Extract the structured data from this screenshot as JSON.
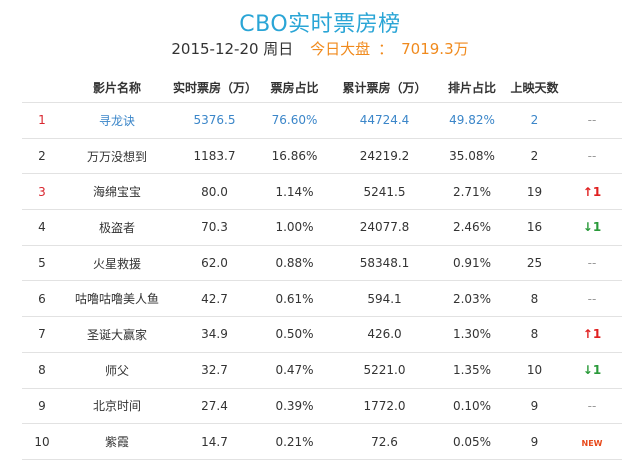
{
  "header": {
    "title": "CBO实时票房榜",
    "date": "2015-12-20 周日",
    "today_label": "今日大盘",
    "today_sep": "：",
    "today_value": "7019.3万"
  },
  "table": {
    "columns": [
      "影片名称",
      "实时票房（万）",
      "票房占比",
      "累计票房（万）",
      "排片占比",
      "上映天数"
    ],
    "rows": [
      {
        "rank": "1",
        "name": "寻龙诀",
        "realtime": "5376.5",
        "share": "76.60%",
        "cumulative": "44724.4",
        "screen_share": "49.82%",
        "days": "2",
        "trend": "--",
        "trend_type": "none"
      },
      {
        "rank": "2",
        "name": "万万没想到",
        "realtime": "1183.7",
        "share": "16.86%",
        "cumulative": "24219.2",
        "screen_share": "35.08%",
        "days": "2",
        "trend": "--",
        "trend_type": "none"
      },
      {
        "rank": "3",
        "name": "海绵宝宝",
        "realtime": "80.0",
        "share": "1.14%",
        "cumulative": "5241.5",
        "screen_share": "2.71%",
        "days": "19",
        "trend": "↑1",
        "trend_type": "up"
      },
      {
        "rank": "4",
        "name": "极盗者",
        "realtime": "70.3",
        "share": "1.00%",
        "cumulative": "24077.8",
        "screen_share": "2.46%",
        "days": "16",
        "trend": "↓1",
        "trend_type": "down"
      },
      {
        "rank": "5",
        "name": "火星救援",
        "realtime": "62.0",
        "share": "0.88%",
        "cumulative": "58348.1",
        "screen_share": "0.91%",
        "days": "25",
        "trend": "--",
        "trend_type": "none"
      },
      {
        "rank": "6",
        "name": "咕噜咕噜美人鱼",
        "realtime": "42.7",
        "share": "0.61%",
        "cumulative": "594.1",
        "screen_share": "2.03%",
        "days": "8",
        "trend": "--",
        "trend_type": "none"
      },
      {
        "rank": "7",
        "name": "圣诞大赢家",
        "realtime": "34.9",
        "share": "0.50%",
        "cumulative": "426.0",
        "screen_share": "1.30%",
        "days": "8",
        "trend": "↑1",
        "trend_type": "up"
      },
      {
        "rank": "8",
        "name": "师父",
        "realtime": "32.7",
        "share": "0.47%",
        "cumulative": "5221.0",
        "screen_share": "1.35%",
        "days": "10",
        "trend": "↓1",
        "trend_type": "down"
      },
      {
        "rank": "9",
        "name": "北京时间",
        "realtime": "27.4",
        "share": "0.39%",
        "cumulative": "1772.0",
        "screen_share": "0.10%",
        "days": "9",
        "trend": "--",
        "trend_type": "none"
      },
      {
        "rank": "10",
        "name": "紫霞",
        "realtime": "14.7",
        "share": "0.21%",
        "cumulative": "72.6",
        "screen_share": "0.05%",
        "days": "9",
        "trend": "NEW",
        "trend_type": "new"
      }
    ]
  },
  "colors": {
    "title": "#2aa5d6",
    "accent": "#f08a1d",
    "top_row": "#3b86c9",
    "rank_red": "#d9262f",
    "up": "#e02020",
    "down": "#2a9a3a"
  }
}
